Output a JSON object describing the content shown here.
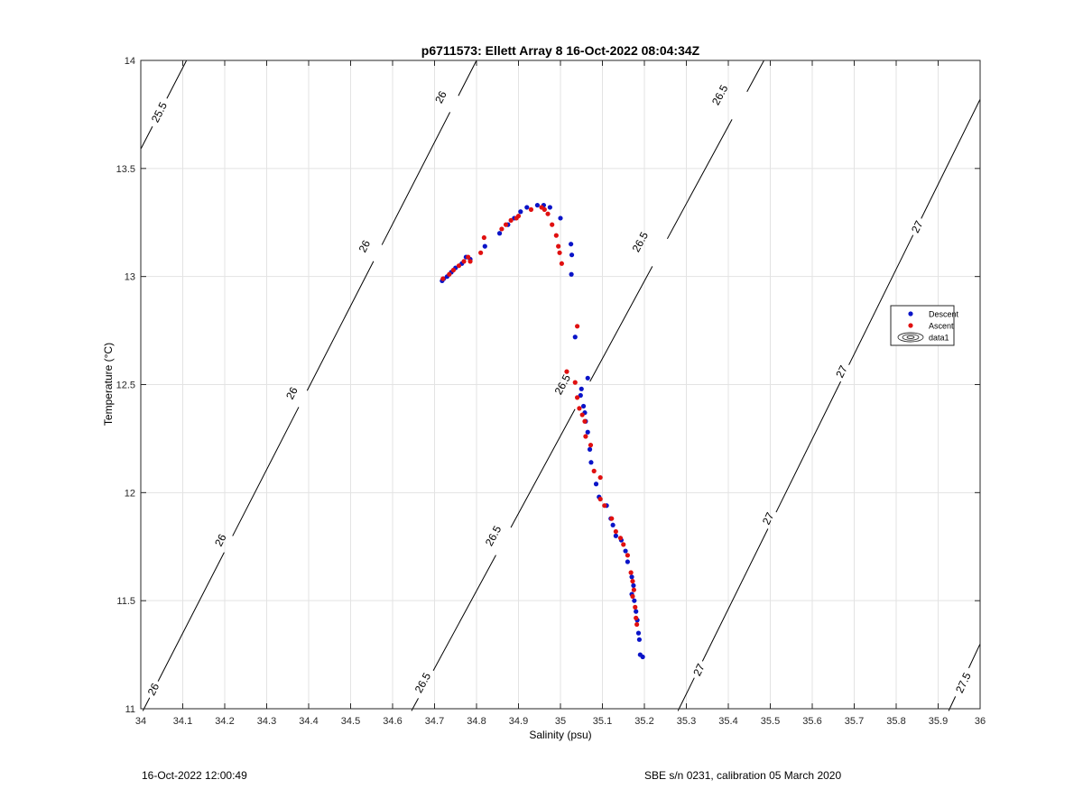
{
  "chart_data": {
    "type": "scatter",
    "title": "p6711573: Ellett Array 8 16-Oct-2022 08:04:34Z",
    "xlabel": "Salinity (psu)",
    "ylabel": "Temperature (°C)",
    "xlim": [
      34,
      36
    ],
    "ylim": [
      11,
      14
    ],
    "xticks": [
      "34",
      "34.1",
      "34.2",
      "34.3",
      "34.4",
      "34.5",
      "34.6",
      "34.7",
      "34.8",
      "34.9",
      "35",
      "35.1",
      "35.2",
      "35.3",
      "35.4",
      "35.5",
      "35.6",
      "35.7",
      "35.8",
      "35.9",
      "36"
    ],
    "yticks": [
      "11",
      "11.5",
      "12",
      "12.5",
      "13",
      "13.5",
      "14"
    ],
    "grid": true,
    "legend_placement": "east",
    "colors": {
      "descent": "#0a14c8",
      "ascent": "#e01010",
      "contour": "#000000",
      "grid": "#e3e3e3"
    },
    "series": [
      {
        "name": "Descent",
        "points": [
          [
            34.718,
            12.98
          ],
          [
            34.722,
            12.99
          ],
          [
            34.73,
            13.0
          ],
          [
            34.74,
            13.02
          ],
          [
            34.75,
            13.04
          ],
          [
            34.765,
            13.06
          ],
          [
            34.775,
            13.09
          ],
          [
            34.785,
            13.08
          ],
          [
            34.82,
            13.14
          ],
          [
            34.855,
            13.2
          ],
          [
            34.875,
            13.24
          ],
          [
            34.89,
            13.27
          ],
          [
            34.905,
            13.3
          ],
          [
            34.92,
            13.32
          ],
          [
            34.945,
            13.33
          ],
          [
            34.96,
            13.33
          ],
          [
            34.975,
            13.32
          ],
          [
            35.0,
            13.27
          ],
          [
            35.025,
            13.15
          ],
          [
            35.027,
            13.1
          ],
          [
            35.026,
            13.01
          ],
          [
            35.035,
            12.72
          ],
          [
            35.065,
            12.53
          ],
          [
            35.05,
            12.48
          ],
          [
            35.048,
            12.45
          ],
          [
            35.055,
            12.4
          ],
          [
            35.058,
            12.37
          ],
          [
            35.06,
            12.33
          ],
          [
            35.065,
            12.28
          ],
          [
            35.07,
            12.2
          ],
          [
            35.073,
            12.14
          ],
          [
            35.085,
            12.04
          ],
          [
            35.092,
            11.98
          ],
          [
            35.11,
            11.94
          ],
          [
            35.12,
            11.88
          ],
          [
            35.125,
            11.85
          ],
          [
            35.132,
            11.8
          ],
          [
            35.145,
            11.78
          ],
          [
            35.155,
            11.73
          ],
          [
            35.16,
            11.68
          ],
          [
            35.17,
            11.61
          ],
          [
            35.174,
            11.57
          ],
          [
            35.17,
            11.53
          ],
          [
            35.176,
            11.5
          ],
          [
            35.18,
            11.45
          ],
          [
            35.183,
            11.41
          ],
          [
            35.186,
            11.35
          ],
          [
            35.188,
            11.32
          ],
          [
            35.19,
            11.25
          ],
          [
            35.196,
            11.24
          ]
        ]
      },
      {
        "name": "Ascent",
        "points": [
          [
            34.72,
            12.99
          ],
          [
            34.735,
            13.01
          ],
          [
            34.745,
            13.03
          ],
          [
            34.758,
            13.05
          ],
          [
            34.77,
            13.07
          ],
          [
            34.78,
            13.09
          ],
          [
            34.785,
            13.07
          ],
          [
            34.81,
            13.11
          ],
          [
            34.818,
            13.18
          ],
          [
            34.86,
            13.22
          ],
          [
            34.87,
            13.24
          ],
          [
            34.882,
            13.26
          ],
          [
            34.895,
            13.27
          ],
          [
            34.9,
            13.28
          ],
          [
            34.93,
            13.31
          ],
          [
            34.955,
            13.32
          ],
          [
            34.962,
            13.31
          ],
          [
            34.97,
            13.29
          ],
          [
            34.98,
            13.24
          ],
          [
            34.99,
            13.19
          ],
          [
            34.995,
            13.14
          ],
          [
            34.998,
            13.11
          ],
          [
            35.003,
            13.06
          ],
          [
            35.04,
            12.77
          ],
          [
            35.015,
            12.56
          ],
          [
            35.035,
            12.51
          ],
          [
            35.04,
            12.44
          ],
          [
            35.045,
            12.39
          ],
          [
            35.052,
            12.36
          ],
          [
            35.058,
            12.33
          ],
          [
            35.06,
            12.26
          ],
          [
            35.072,
            12.22
          ],
          [
            35.08,
            12.1
          ],
          [
            35.095,
            12.07
          ],
          [
            35.095,
            11.97
          ],
          [
            35.105,
            11.94
          ],
          [
            35.122,
            11.88
          ],
          [
            35.132,
            11.82
          ],
          [
            35.143,
            11.79
          ],
          [
            35.15,
            11.76
          ],
          [
            35.16,
            11.71
          ],
          [
            35.168,
            11.63
          ],
          [
            35.172,
            11.59
          ],
          [
            35.175,
            11.55
          ],
          [
            35.172,
            11.52
          ],
          [
            35.178,
            11.47
          ],
          [
            35.18,
            11.42
          ],
          [
            35.182,
            11.39
          ]
        ]
      }
    ],
    "legend": [
      "Descent",
      "Ascent",
      "data1"
    ],
    "density_contours": [
      {
        "value": "25.5",
        "points": [
          [
            34.0,
            13.59
          ],
          [
            34.109,
            14.0
          ]
        ],
        "labels": [
          {
            "text": "25.5",
            "at": [
              34.044,
              13.76
            ]
          }
        ]
      },
      {
        "value": "26",
        "points": [
          [
            34.005,
            10.99
          ],
          [
            34.8,
            14.0
          ]
        ],
        "labels": [
          {
            "text": "26",
            "at": [
              34.03,
              11.09
            ]
          },
          {
            "text": "26",
            "at": [
              34.19,
              11.78
            ]
          },
          {
            "text": "26",
            "at": [
              34.36,
              12.46
            ]
          },
          {
            "text": "26",
            "at": [
              34.533,
              13.14
            ]
          },
          {
            "text": "26",
            "at": [
              34.715,
              13.83
            ]
          }
        ]
      },
      {
        "value": "26.5",
        "points": [
          [
            34.645,
            10.99
          ],
          [
            35.485,
            14.0
          ]
        ],
        "labels": [
          {
            "text": "26.5",
            "at": [
              34.672,
              11.12
            ]
          },
          {
            "text": "26.5",
            "at": [
              34.84,
              11.8
            ]
          },
          {
            "text": "26.5",
            "at": [
              35.005,
              12.5
            ]
          },
          {
            "text": "26.5",
            "at": [
              35.19,
              13.16
            ]
          },
          {
            "text": "26.5",
            "at": [
              35.38,
              13.84
            ]
          }
        ]
      },
      {
        "value": "27",
        "points": [
          [
            35.28,
            10.99
          ],
          [
            36.0,
            13.82
          ]
        ],
        "labels": [
          {
            "text": "27",
            "at": [
              35.33,
              11.18
            ]
          },
          {
            "text": "27",
            "at": [
              35.495,
              11.88
            ]
          },
          {
            "text": "27",
            "at": [
              35.67,
              12.56
            ]
          },
          {
            "text": "27",
            "at": [
              35.85,
              13.23
            ]
          }
        ]
      },
      {
        "value": "27.5",
        "points": [
          [
            35.925,
            10.99
          ],
          [
            36.0,
            11.3
          ]
        ],
        "labels": [
          {
            "text": "27.5",
            "at": [
              35.96,
              11.12
            ]
          }
        ]
      }
    ]
  },
  "footer": {
    "left": "16-Oct-2022 12:00:49",
    "right": "SBE s/n 0231, calibration 05 March 2020"
  }
}
